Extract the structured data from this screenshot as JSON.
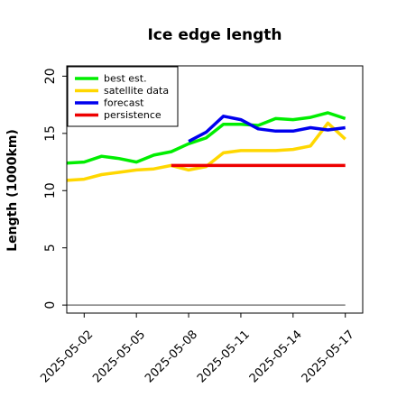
{
  "chart_data": {
    "type": "line",
    "title": "Ice edge length",
    "xlabel": "",
    "ylabel": "Length (1000km)",
    "ylim": [
      -0.7,
      20.9
    ],
    "xlim": [
      "2025-05-01",
      "2025-05-18"
    ],
    "yticks": [
      0,
      5,
      10,
      15,
      20
    ],
    "xticks": [
      {
        "date": "2025-05-02",
        "label": "2025-05-02",
        "color": "#000000"
      },
      {
        "date": "2025-05-05",
        "label": "2025-05-05",
        "color": "#000000"
      },
      {
        "date": "2025-05-08",
        "label": "2025-05-08",
        "color": "#228b22"
      },
      {
        "date": "2025-05-11",
        "label": "2025-05-11",
        "color": "#000000"
      },
      {
        "date": "2025-05-14",
        "label": "2025-05-14",
        "color": "#000000"
      },
      {
        "date": "2025-05-17",
        "label": "2025-05-17",
        "color": "#000000"
      }
    ],
    "grid": false,
    "legend_position": "top-left",
    "series": [
      {
        "name": "best est.",
        "color": "#00ee00",
        "points": [
          [
            "2025-05-01",
            12.4
          ],
          [
            "2025-05-02",
            12.5
          ],
          [
            "2025-05-03",
            13.0
          ],
          [
            "2025-05-04",
            12.8
          ],
          [
            "2025-05-05",
            12.5
          ],
          [
            "2025-05-06",
            13.1
          ],
          [
            "2025-05-07",
            13.4
          ],
          [
            "2025-05-08",
            14.1
          ],
          [
            "2025-05-09",
            14.6
          ],
          [
            "2025-05-10",
            15.8
          ],
          [
            "2025-05-11",
            15.8
          ],
          [
            "2025-05-12",
            15.7
          ],
          [
            "2025-05-13",
            16.3
          ],
          [
            "2025-05-14",
            16.2
          ],
          [
            "2025-05-15",
            16.4
          ],
          [
            "2025-05-16",
            16.8
          ],
          [
            "2025-05-17",
            16.3
          ]
        ]
      },
      {
        "name": "satellite data",
        "color": "#ffd700",
        "points": [
          [
            "2025-05-01",
            10.9
          ],
          [
            "2025-05-02",
            11.0
          ],
          [
            "2025-05-03",
            11.4
          ],
          [
            "2025-05-04",
            11.6
          ],
          [
            "2025-05-05",
            11.8
          ],
          [
            "2025-05-06",
            11.9
          ],
          [
            "2025-05-07",
            12.2
          ],
          [
            "2025-05-08",
            11.8
          ],
          [
            "2025-05-09",
            12.1
          ],
          [
            "2025-05-10",
            13.3
          ],
          [
            "2025-05-11",
            13.5
          ],
          [
            "2025-05-12",
            13.5
          ],
          [
            "2025-05-13",
            13.5
          ],
          [
            "2025-05-14",
            13.6
          ],
          [
            "2025-05-15",
            13.9
          ],
          [
            "2025-05-16",
            15.9
          ],
          [
            "2025-05-17",
            14.5
          ]
        ]
      },
      {
        "name": "forecast",
        "color": "#0000ee",
        "points": [
          [
            "2025-05-08",
            14.3
          ],
          [
            "2025-05-09",
            15.1
          ],
          [
            "2025-05-10",
            16.5
          ],
          [
            "2025-05-11",
            16.2
          ],
          [
            "2025-05-12",
            15.4
          ],
          [
            "2025-05-13",
            15.2
          ],
          [
            "2025-05-14",
            15.2
          ],
          [
            "2025-05-15",
            15.5
          ],
          [
            "2025-05-16",
            15.3
          ],
          [
            "2025-05-17",
            15.5
          ]
        ]
      },
      {
        "name": "persistence",
        "color": "#ee0000",
        "points": [
          [
            "2025-05-07",
            12.2
          ],
          [
            "2025-05-17",
            12.2
          ]
        ]
      }
    ],
    "baseline": {
      "color": "#808080",
      "points": [
        [
          "2025-05-01",
          0
        ],
        [
          "2025-05-17",
          0
        ]
      ]
    }
  }
}
